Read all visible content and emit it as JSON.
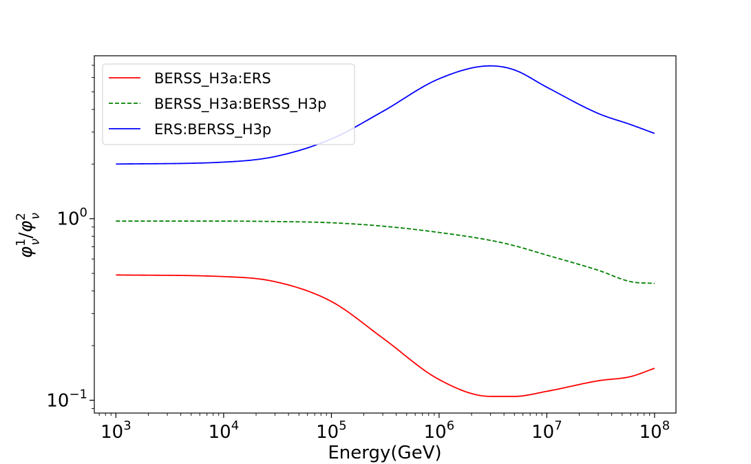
{
  "chart_data": {
    "type": "line",
    "title": "",
    "xlabel": "Energy(GeV)",
    "ylabel": "φ_ν^1/φ_ν^2",
    "xscale": "log",
    "yscale": "log",
    "xlim": [
      630,
      158000000
    ],
    "ylim": [
      0.085,
      7.9
    ],
    "x_ticks": [
      {
        "value": 1000,
        "base": "10",
        "exp": "3"
      },
      {
        "value": 10000,
        "base": "10",
        "exp": "4"
      },
      {
        "value": 100000,
        "base": "10",
        "exp": "5"
      },
      {
        "value": 1000000,
        "base": "10",
        "exp": "6"
      },
      {
        "value": 10000000,
        "base": "10",
        "exp": "7"
      },
      {
        "value": 100000000,
        "base": "10",
        "exp": "8"
      }
    ],
    "y_ticks": [
      {
        "value": 1,
        "base": "10",
        "exp": "0"
      },
      {
        "value": 0.1,
        "base": "10",
        "exp": "−1"
      }
    ],
    "grid": false,
    "legend_position": "upper-left",
    "x": [
      1000,
      10000,
      30000,
      100000,
      300000,
      1000000,
      3000000,
      5000000,
      10000000,
      30000000,
      60000000,
      100000000
    ],
    "series": [
      {
        "name": "BERSS_H3a:ERS",
        "color": "#ff0000",
        "style": "solid",
        "values": [
          0.49,
          0.48,
          0.45,
          0.35,
          0.22,
          0.13,
          0.105,
          0.105,
          0.112,
          0.128,
          0.135,
          0.15
        ]
      },
      {
        "name": "BERSS_H3a:BERSS_H3p",
        "color": "#008000",
        "style": "dashed",
        "values": [
          0.97,
          0.97,
          0.965,
          0.95,
          0.91,
          0.84,
          0.76,
          0.71,
          0.63,
          0.52,
          0.45,
          0.44
        ]
      },
      {
        "name": "ERS:BERSS_H3p",
        "color": "#0000ff",
        "style": "solid",
        "values": [
          2.0,
          2.05,
          2.2,
          2.75,
          3.9,
          5.9,
          6.95,
          6.6,
          5.3,
          3.8,
          3.3,
          2.95
        ]
      }
    ]
  }
}
